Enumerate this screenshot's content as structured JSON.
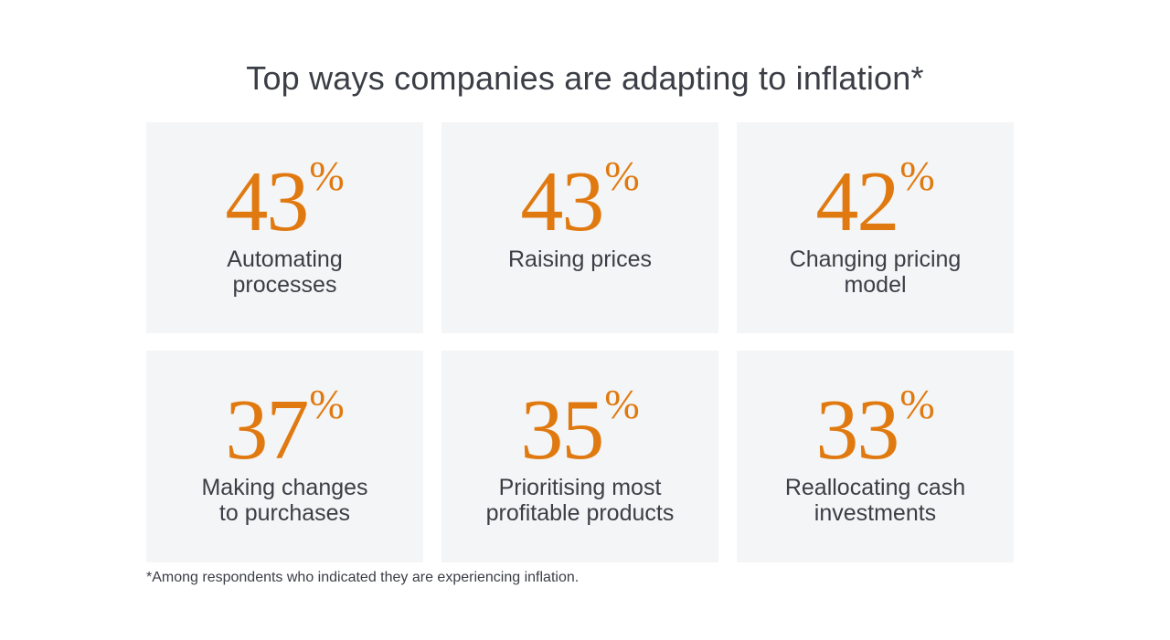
{
  "title": "Top ways companies are adapting to inflation*",
  "footnote": "*Among respondents who indicated they are experiencing inflation.",
  "colors": {
    "accent": "#e07a10",
    "tile_background": "#f4f5f6",
    "text": "#3b3e45"
  },
  "chart_data": {
    "type": "table",
    "title": "Top ways companies are adapting to inflation*",
    "unit": "%",
    "categories": [
      "Automating processes",
      "Raising prices",
      "Changing pricing model",
      "Making changes to purchases",
      "Prioritising most profitable products",
      "Reallocating cash investments"
    ],
    "values": [
      43,
      43,
      42,
      37,
      35,
      33
    ]
  },
  "tiles": [
    {
      "value": "43",
      "unit": "%",
      "label_line1": "Automating",
      "label_line2": "processes"
    },
    {
      "value": "43",
      "unit": "%",
      "label_line1": "Raising prices",
      "label_line2": ""
    },
    {
      "value": "42",
      "unit": "%",
      "label_line1": "Changing pricing",
      "label_line2": "model"
    },
    {
      "value": "37",
      "unit": "%",
      "label_line1": "Making changes",
      "label_line2": "to purchases"
    },
    {
      "value": "35",
      "unit": "%",
      "label_line1": "Prioritising most",
      "label_line2": "profitable products"
    },
    {
      "value": "33",
      "unit": "%",
      "label_line1": "Reallocating cash",
      "label_line2": "investments"
    }
  ]
}
